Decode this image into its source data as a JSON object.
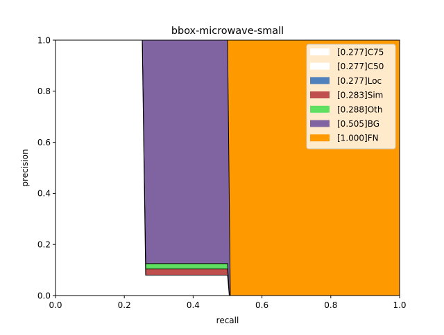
{
  "chart_data": {
    "type": "area",
    "title": "bbox-microwave-small",
    "xlabel": "recall",
    "ylabel": "precision",
    "xlim": [
      0,
      1
    ],
    "ylim": [
      0,
      1
    ],
    "x_ticks": [
      "0.0",
      "0.2",
      "0.4",
      "0.6",
      "0.8",
      "1.0"
    ],
    "y_ticks": [
      "0.0",
      "0.2",
      "0.4",
      "0.6",
      "0.8",
      "1.0"
    ],
    "grid": false,
    "legend_position": "top-right",
    "series": [
      {
        "name": "[0.277]C75",
        "color": "#ffffff",
        "points": [
          [
            0,
            1.0
          ],
          [
            0.252,
            1.0
          ],
          [
            0.262,
            0.08
          ],
          [
            0.5,
            0.08
          ],
          [
            0.505,
            0.0
          ],
          [
            1.0,
            0.0
          ]
        ]
      },
      {
        "name": "[0.277]C50",
        "color": "#ffffff",
        "points": [
          [
            0,
            1.0
          ],
          [
            0.252,
            1.0
          ],
          [
            0.262,
            0.08
          ],
          [
            0.5,
            0.08
          ],
          [
            0.505,
            0.0
          ],
          [
            1.0,
            0.0
          ]
        ]
      },
      {
        "name": "[0.277]Loc",
        "color": "#4f81bd",
        "points": [
          [
            0,
            1.0
          ],
          [
            0.252,
            1.0
          ],
          [
            0.262,
            0.08
          ],
          [
            0.5,
            0.08
          ],
          [
            0.505,
            0.0
          ],
          [
            1.0,
            0.0
          ]
        ]
      },
      {
        "name": "[0.283]Sim",
        "color": "#c0504d",
        "points": [
          [
            0,
            1.0
          ],
          [
            0.252,
            1.0
          ],
          [
            0.262,
            0.104
          ],
          [
            0.5,
            0.104
          ],
          [
            0.505,
            0.0
          ],
          [
            1.0,
            0.0
          ]
        ]
      },
      {
        "name": "[0.288]Oth",
        "color": "#60e060",
        "points": [
          [
            0,
            1.0
          ],
          [
            0.252,
            1.0
          ],
          [
            0.262,
            0.125
          ],
          [
            0.5,
            0.125
          ],
          [
            0.505,
            0.0
          ],
          [
            1.0,
            0.0
          ]
        ]
      },
      {
        "name": "[0.505]BG",
        "color": "#8064a2",
        "points": [
          [
            0,
            1.0
          ],
          [
            0.5,
            1.0
          ],
          [
            0.508,
            0.0
          ],
          [
            1.0,
            0.0
          ]
        ]
      },
      {
        "name": "[1.000]FN",
        "color": "#ff9900",
        "points": [
          [
            0,
            1.0
          ],
          [
            1.0,
            1.0
          ]
        ]
      }
    ]
  }
}
